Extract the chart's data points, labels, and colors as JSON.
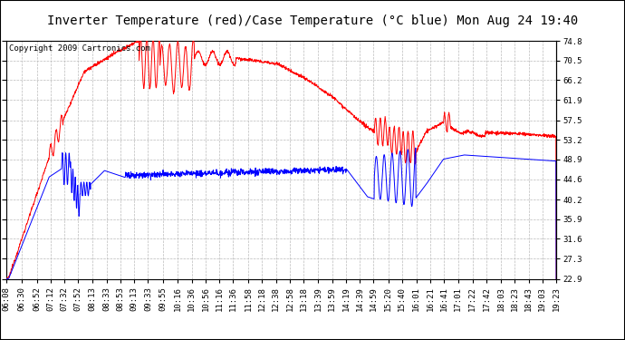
{
  "title": "Inverter Temperature (red)/Case Temperature (°C blue) Mon Aug 24 19:40",
  "copyright": "Copyright 2009 Cartronics.com",
  "ylabel_right_ticks": [
    22.9,
    27.3,
    31.6,
    35.9,
    40.2,
    44.6,
    48.9,
    53.2,
    57.5,
    61.9,
    66.2,
    70.5,
    74.8
  ],
  "ylim": [
    22.9,
    74.8
  ],
  "bg_color": "#ffffff",
  "plot_bg_color": "#ffffff",
  "grid_color": "#bbbbbb",
  "red_color": "#ff0000",
  "blue_color": "#0000ff",
  "title_fontsize": 10,
  "copyright_fontsize": 6.5,
  "tick_fontsize": 6.5,
  "x_start_minutes": 368,
  "x_end_minutes": 1163,
  "x_tick_labels": [
    "06:08",
    "06:30",
    "06:52",
    "07:12",
    "07:32",
    "07:52",
    "08:13",
    "08:33",
    "08:53",
    "09:13",
    "09:33",
    "09:55",
    "10:16",
    "10:36",
    "10:56",
    "11:16",
    "11:36",
    "11:58",
    "12:18",
    "12:38",
    "12:58",
    "13:18",
    "13:39",
    "13:59",
    "14:19",
    "14:39",
    "14:59",
    "15:20",
    "15:40",
    "16:01",
    "16:21",
    "16:41",
    "17:01",
    "17:22",
    "17:42",
    "18:03",
    "18:23",
    "18:43",
    "19:03",
    "19:23"
  ],
  "x_tick_minutes": [
    368,
    390,
    412,
    432,
    452,
    472,
    493,
    513,
    533,
    553,
    573,
    595,
    616,
    636,
    656,
    676,
    696,
    718,
    738,
    758,
    778,
    798,
    819,
    839,
    859,
    879,
    899,
    920,
    940,
    961,
    981,
    1001,
    1021,
    1042,
    1062,
    1083,
    1103,
    1123,
    1143,
    1163
  ]
}
